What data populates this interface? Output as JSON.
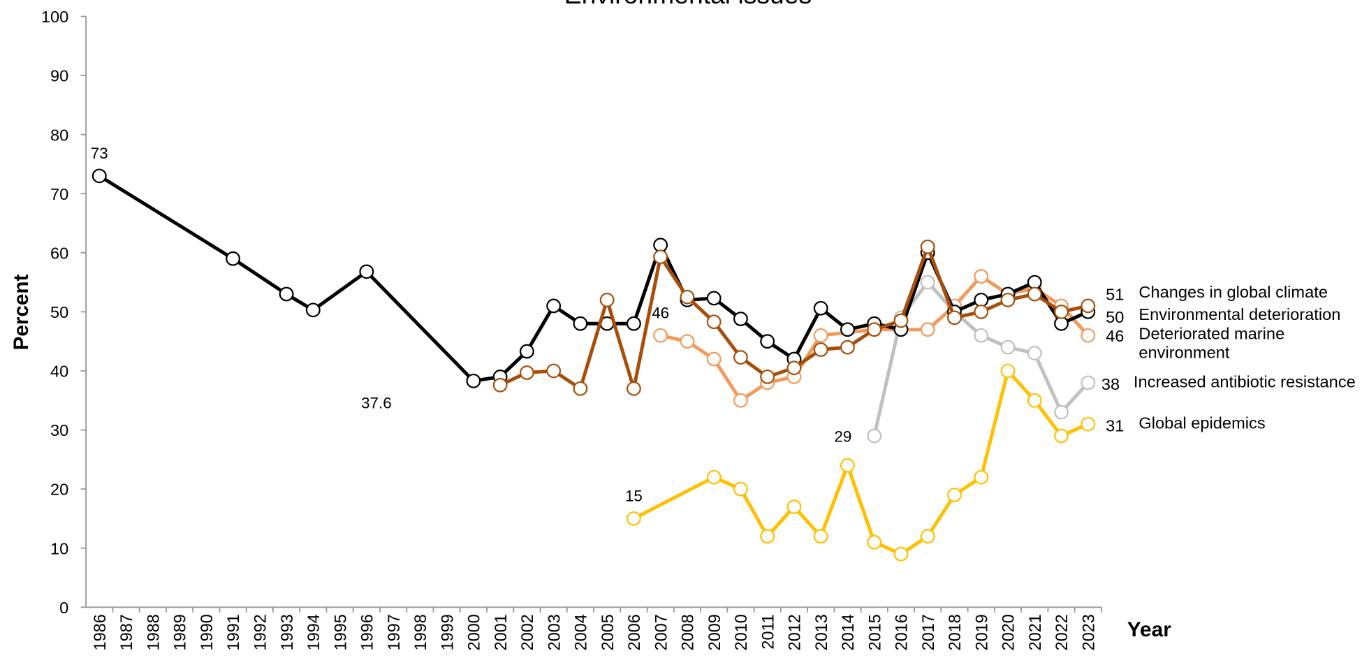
{
  "chart_data": {
    "type": "line",
    "title": "Environmental issues",
    "x_label": "Year",
    "y_label": "Percent",
    "xlim": [
      1985.5,
      2023.5
    ],
    "xticks": [
      1986,
      1987,
      1988,
      1989,
      1990,
      1991,
      1992,
      1993,
      1994,
      1995,
      1996,
      1997,
      1998,
      1999,
      2000,
      2001,
      2002,
      2003,
      2004,
      2005,
      2006,
      2007,
      2008,
      2009,
      2010,
      2011,
      2012,
      2013,
      2014,
      2015,
      2016,
      2017,
      2018,
      2019,
      2020,
      2021,
      2022,
      2023
    ],
    "ylim": [
      0,
      100
    ],
    "yticks": [
      0,
      10,
      20,
      30,
      40,
      50,
      60,
      70,
      80,
      90,
      100
    ],
    "grid": false,
    "series": [
      {
        "name": "Changes in global climate",
        "color": "#a64f0c",
        "x": [
          2001,
          2002,
          2003,
          2004,
          2005,
          2006,
          2007,
          2008,
          2009,
          2010,
          2011,
          2012,
          2013,
          2014,
          2015,
          2016,
          2017,
          2018,
          2019,
          2020,
          2021,
          2022,
          2023
        ],
        "values": [
          37.6,
          39.7,
          40,
          37,
          52,
          37,
          59.3,
          52.5,
          48.3,
          42.3,
          39,
          40.5,
          43.6,
          44,
          47,
          48.5,
          61,
          49,
          50,
          52,
          53,
          50,
          51
        ]
      },
      {
        "name": "Environmental deterioration",
        "color": "#000000",
        "x": [
          1986,
          1991,
          1993,
          1994,
          1996,
          2000,
          2001,
          2002,
          2003,
          2004,
          2005,
          2006,
          2007,
          2008,
          2009,
          2010,
          2011,
          2012,
          2013,
          2014,
          2015,
          2016,
          2017,
          2018,
          2019,
          2020,
          2021,
          2022,
          2023
        ],
        "values": [
          73,
          59,
          53,
          50.3,
          56.8,
          38.3,
          39,
          43.3,
          51,
          48,
          48,
          48,
          61.3,
          52,
          52.3,
          48.8,
          45,
          42,
          50.6,
          47,
          48,
          47,
          60,
          50,
          52,
          53,
          55,
          48,
          50
        ]
      },
      {
        "name": "Deteriorated marine environment",
        "color": "#f39a5a",
        "x": [
          2007,
          2008,
          2009,
          2010,
          2011,
          2012,
          2013,
          2015,
          2017,
          2018,
          2019,
          2020,
          2021,
          2022,
          2023
        ],
        "values": [
          46,
          45,
          42,
          35,
          38,
          39,
          46,
          47,
          47,
          51,
          56,
          53,
          54,
          51,
          46
        ]
      },
      {
        "name": "Increased antibiotic resistance",
        "color": "#c0c0c0",
        "x": [
          2015,
          2016,
          2017,
          2018,
          2019,
          2020,
          2021,
          2022,
          2023
        ],
        "values": [
          29,
          49,
          55,
          50,
          46,
          44,
          43,
          33,
          38
        ]
      },
      {
        "name": "Global epidemics",
        "color": "#ffc000",
        "x": [
          2006,
          2009,
          2010,
          2011,
          2012,
          2013,
          2014,
          2015,
          2016,
          2017,
          2018,
          2019,
          2020,
          2021,
          2022,
          2023
        ],
        "values": [
          15,
          22,
          20,
          12,
          17,
          12,
          24,
          11,
          9,
          12,
          19,
          22,
          40,
          35,
          29,
          31
        ]
      }
    ]
  }
}
